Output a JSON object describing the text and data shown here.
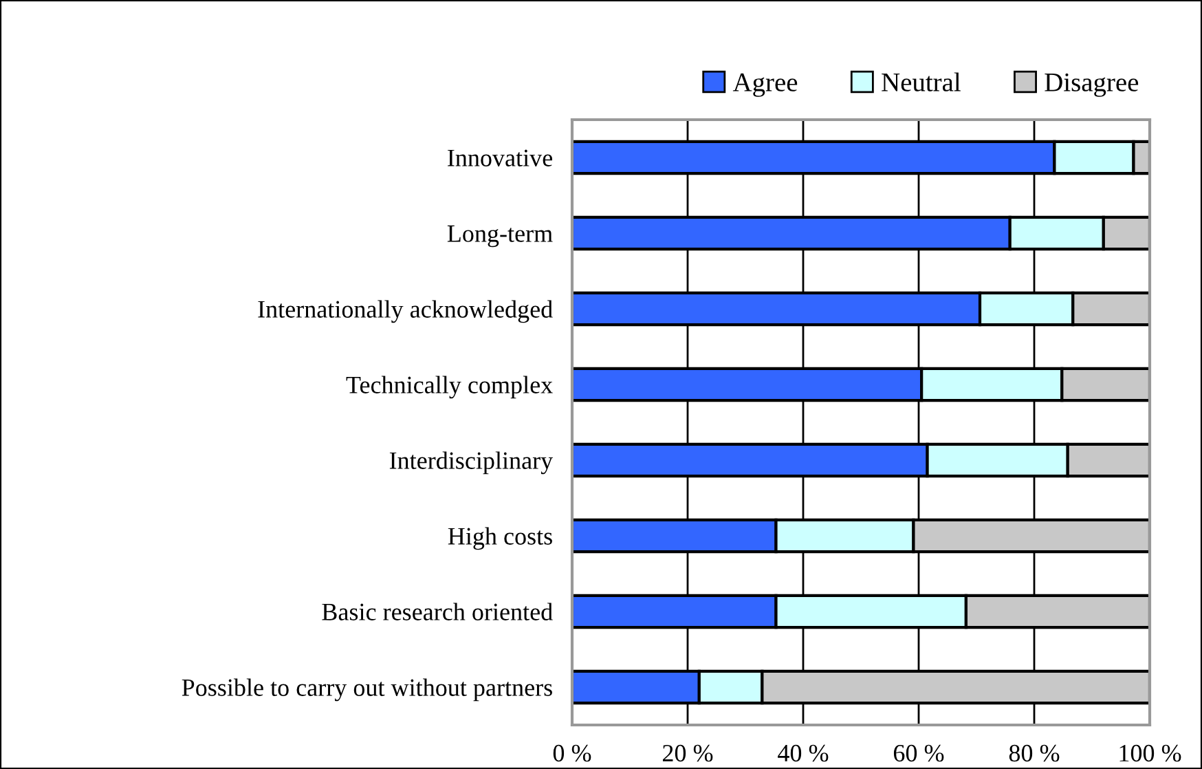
{
  "chart_data": {
    "type": "bar",
    "orientation": "horizontal",
    "stacked": true,
    "categories": [
      "Innovative",
      "Long-term",
      "Internationally acknowledged",
      "Technically complex",
      "Interdisciplinary",
      "High costs",
      "Basic research oriented",
      "Possible to carry out without partners"
    ],
    "series": [
      {
        "name": "Agree",
        "color": "#3366ff",
        "values": [
          83.5,
          75.8,
          70.6,
          60.5,
          61.5,
          35.3,
          35.3,
          22.0
        ]
      },
      {
        "name": "Neutral",
        "color": "#ccffff",
        "values": [
          13.7,
          16.2,
          16.1,
          24.3,
          24.3,
          23.8,
          32.9,
          10.9
        ]
      },
      {
        "name": "Disagree",
        "color": "#c8c8c8",
        "values": [
          2.8,
          8.0,
          13.3,
          15.2,
          14.2,
          40.9,
          31.8,
          67.1
        ]
      }
    ],
    "xlim": [
      0,
      100
    ],
    "xticks": [
      {
        "value": 0,
        "label": "0 %"
      },
      {
        "value": 20,
        "label": "20 %"
      },
      {
        "value": 40,
        "label": "40 %"
      },
      {
        "value": 60,
        "label": "60 %"
      },
      {
        "value": 80,
        "label": "80 %"
      },
      {
        "value": 100,
        "label": "100 %"
      }
    ],
    "grid": "x",
    "legend": "top"
  }
}
